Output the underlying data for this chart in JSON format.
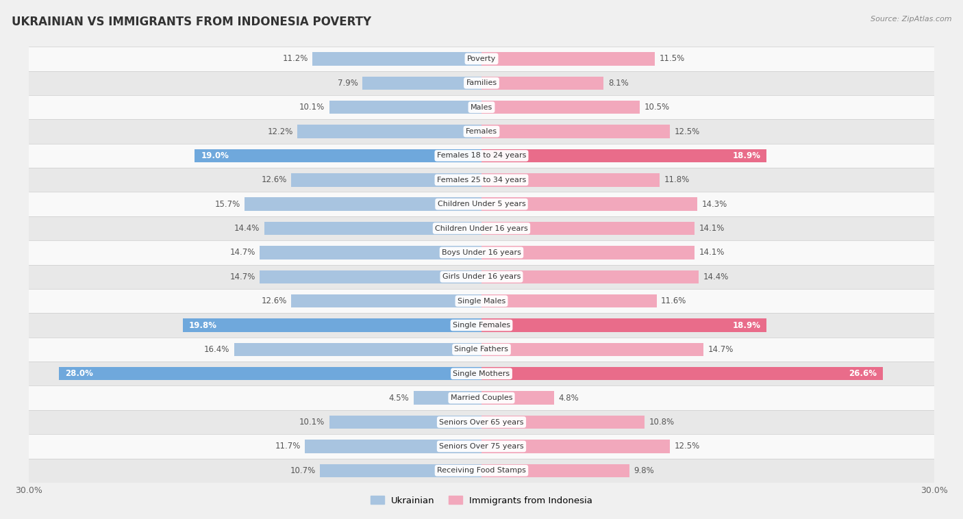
{
  "title": "UKRAINIAN VS IMMIGRANTS FROM INDONESIA POVERTY",
  "source": "Source: ZipAtlas.com",
  "categories": [
    "Poverty",
    "Families",
    "Males",
    "Females",
    "Females 18 to 24 years",
    "Females 25 to 34 years",
    "Children Under 5 years",
    "Children Under 16 years",
    "Boys Under 16 years",
    "Girls Under 16 years",
    "Single Males",
    "Single Females",
    "Single Fathers",
    "Single Mothers",
    "Married Couples",
    "Seniors Over 65 years",
    "Seniors Over 75 years",
    "Receiving Food Stamps"
  ],
  "ukrainian": [
    11.2,
    7.9,
    10.1,
    12.2,
    19.0,
    12.6,
    15.7,
    14.4,
    14.7,
    14.7,
    12.6,
    19.8,
    16.4,
    28.0,
    4.5,
    10.1,
    11.7,
    10.7
  ],
  "indonesia": [
    11.5,
    8.1,
    10.5,
    12.5,
    18.9,
    11.8,
    14.3,
    14.1,
    14.1,
    14.4,
    11.6,
    18.9,
    14.7,
    26.6,
    4.8,
    10.8,
    12.5,
    9.8
  ],
  "ukrainian_color": "#a8c4e0",
  "indonesia_color": "#f2a8bc",
  "ukrainian_highlight_color": "#6fa8dc",
  "indonesia_highlight_color": "#e96c8a",
  "highlight_rows": [
    4,
    11,
    13
  ],
  "background_color": "#f0f0f0",
  "row_bg_even": "#f9f9f9",
  "row_bg_odd": "#e8e8e8",
  "xlim": 30.0,
  "bar_height": 0.55,
  "label_fontsize": 8.5,
  "title_fontsize": 12,
  "category_fontsize": 8.0,
  "value_color_normal": "#555555",
  "value_color_highlight": "#ffffff"
}
